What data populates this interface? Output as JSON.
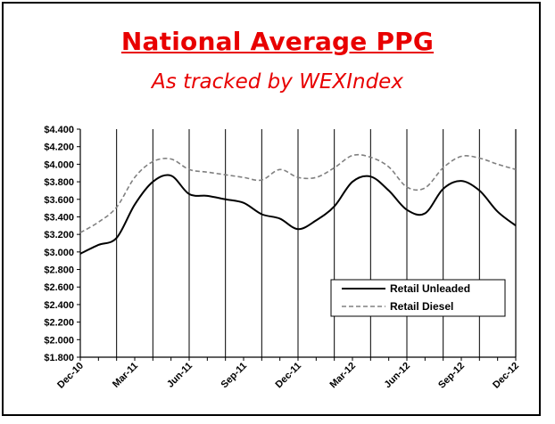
{
  "chart_data": {
    "type": "line",
    "title": "National Average PPG",
    "subtitle": "As tracked by WEXIndex",
    "xlabel": "",
    "ylabel": "",
    "ylim": [
      1.8,
      4.4
    ],
    "yticks": [
      1.8,
      2.0,
      2.2,
      2.4,
      2.6,
      2.8,
      3.0,
      3.2,
      3.4,
      3.6,
      3.8,
      4.0,
      4.2,
      4.4
    ],
    "ytick_labels": [
      "$1.800",
      "$2.000",
      "$2.200",
      "$2.400",
      "$2.600",
      "$2.800",
      "$3.000",
      "$3.200",
      "$3.400",
      "$3.600",
      "$3.800",
      "$4.000",
      "$4.200",
      "$4.400"
    ],
    "categories": [
      "Dec-10",
      "Jan-11",
      "Feb-11",
      "Mar-11",
      "Apr-11",
      "May-11",
      "Jun-11",
      "Jul-11",
      "Aug-11",
      "Sep-11",
      "Oct-11",
      "Nov-11",
      "Dec-11",
      "Jan-12",
      "Feb-12",
      "Mar-12",
      "Apr-12",
      "May-12",
      "Jun-12",
      "Jul-12",
      "Aug-12",
      "Sep-12",
      "Oct-12",
      "Nov-12",
      "Dec-12"
    ],
    "x_tick_labels": [
      "Dec-10",
      "Mar-11",
      "Jun-11",
      "Sep-11",
      "Dec-11",
      "Mar-12",
      "Jun-12",
      "Sep-12",
      "Dec-12"
    ],
    "x_tick_every": 3,
    "vertical_gridlines": "every 2 months",
    "grid": "vertical lines only",
    "legend_position": "bottom-right",
    "series": [
      {
        "name": "Retail Unleaded",
        "style": "solid",
        "color": "#000000",
        "values": [
          2.98,
          3.08,
          3.16,
          3.54,
          3.8,
          3.87,
          3.66,
          3.64,
          3.6,
          3.56,
          3.43,
          3.38,
          3.26,
          3.36,
          3.52,
          3.8,
          3.86,
          3.7,
          3.48,
          3.44,
          3.72,
          3.81,
          3.7,
          3.46,
          3.3
        ]
      },
      {
        "name": "Retail Diesel",
        "style": "dashed",
        "color": "#808080",
        "values": [
          3.22,
          3.34,
          3.51,
          3.85,
          4.03,
          4.06,
          3.94,
          3.91,
          3.88,
          3.85,
          3.82,
          3.94,
          3.85,
          3.85,
          3.96,
          4.1,
          4.08,
          3.97,
          3.74,
          3.73,
          3.96,
          4.09,
          4.07,
          4.0,
          3.94
        ]
      }
    ]
  }
}
